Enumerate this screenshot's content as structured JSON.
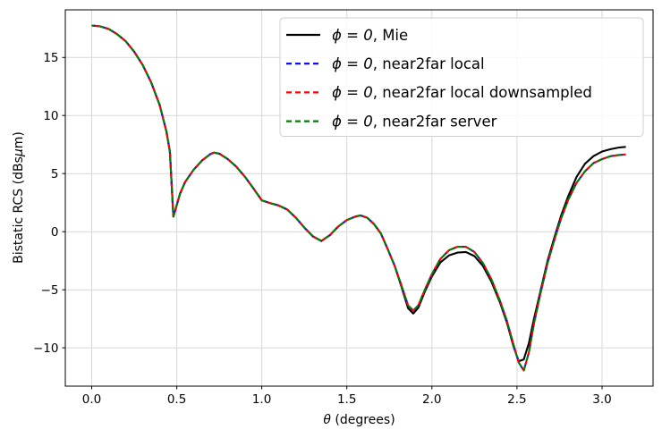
{
  "figure": {
    "background": "#ffffff"
  },
  "chart_data": {
    "type": "line",
    "title": "",
    "xlabel": "θ (degrees)",
    "xlabel_math": "θ",
    "xlabel_rest": " (degrees)",
    "ylabel": "Bistatic RCS (dBsμm)",
    "ylabel_pre": "Bistatic RCS (dBs",
    "ylabel_mu": "μ",
    "ylabel_post": "m)",
    "xlim": [
      -0.155,
      3.3
    ],
    "ylim": [
      -13.3,
      19.1
    ],
    "xticks": [
      0.0,
      0.5,
      1.0,
      1.5,
      2.0,
      2.5,
      3.0
    ],
    "xtick_labels": [
      "0.0",
      "0.5",
      "1.0",
      "1.5",
      "2.0",
      "2.5",
      "3.0"
    ],
    "yticks": [
      15,
      10,
      5,
      0,
      -5,
      -10
    ],
    "ytick_labels": [
      "15",
      "10",
      "5",
      "0",
      "−5",
      "−10"
    ],
    "grid": true,
    "grid_color": "#d7d7d7",
    "axis_color": "#000000",
    "legend": {
      "position": "upper right",
      "border_color": "#cfcfcf",
      "background": "#ffffff"
    },
    "x": [
      0.0,
      0.05,
      0.1,
      0.15,
      0.2,
      0.25,
      0.3,
      0.35,
      0.4,
      0.44,
      0.46,
      0.48,
      0.5,
      0.52,
      0.55,
      0.6,
      0.65,
      0.7,
      0.72,
      0.75,
      0.8,
      0.85,
      0.9,
      0.95,
      1.0,
      1.05,
      1.1,
      1.15,
      1.2,
      1.25,
      1.3,
      1.35,
      1.4,
      1.45,
      1.5,
      1.55,
      1.58,
      1.62,
      1.66,
      1.7,
      1.74,
      1.78,
      1.82,
      1.86,
      1.89,
      1.92,
      1.96,
      2.0,
      2.05,
      2.1,
      2.15,
      2.2,
      2.25,
      2.3,
      2.35,
      2.4,
      2.44,
      2.48,
      2.51,
      2.54,
      2.57,
      2.6,
      2.64,
      2.68,
      2.72,
      2.76,
      2.8,
      2.85,
      2.9,
      2.95,
      3.0,
      3.05,
      3.1,
      3.14
    ],
    "series": [
      {
        "id": "mie",
        "label": "ϕ = 0, Mie",
        "label_math": "ϕ = 0",
        "label_rest": ", Mie",
        "color": "#000000",
        "style": "solid",
        "values": [
          17.75,
          17.68,
          17.45,
          17.0,
          16.4,
          15.5,
          14.35,
          12.85,
          10.9,
          8.6,
          6.9,
          1.3,
          2.3,
          3.3,
          4.3,
          5.35,
          6.15,
          6.7,
          6.8,
          6.72,
          6.25,
          5.6,
          4.75,
          3.75,
          2.7,
          2.45,
          2.25,
          1.9,
          1.2,
          0.35,
          -0.4,
          -0.8,
          -0.3,
          0.45,
          1.0,
          1.3,
          1.4,
          1.2,
          0.65,
          -0.15,
          -1.5,
          -2.9,
          -4.7,
          -6.6,
          -7.05,
          -6.55,
          -5.1,
          -3.85,
          -2.65,
          -2.05,
          -1.8,
          -1.75,
          -2.1,
          -2.95,
          -4.3,
          -6.1,
          -7.8,
          -9.9,
          -11.15,
          -11.0,
          -9.6,
          -7.5,
          -5.0,
          -2.5,
          -0.5,
          1.4,
          3.0,
          4.7,
          5.85,
          6.5,
          6.9,
          7.1,
          7.25,
          7.3
        ]
      },
      {
        "id": "near2far-local",
        "label": "ϕ = 0, near2far local",
        "label_math": "ϕ = 0",
        "label_rest": ", near2far local",
        "color": "#0000ff",
        "style": "dashed",
        "values": [
          17.75,
          17.68,
          17.45,
          17.0,
          16.4,
          15.5,
          14.35,
          12.85,
          10.9,
          8.6,
          6.9,
          1.3,
          2.3,
          3.3,
          4.3,
          5.35,
          6.15,
          6.7,
          6.8,
          6.72,
          6.25,
          5.6,
          4.75,
          3.75,
          2.7,
          2.45,
          2.25,
          1.9,
          1.2,
          0.35,
          -0.4,
          -0.8,
          -0.3,
          0.45,
          1.0,
          1.3,
          1.4,
          1.2,
          0.65,
          -0.15,
          -1.5,
          -2.9,
          -4.6,
          -6.35,
          -6.8,
          -6.35,
          -4.95,
          -3.65,
          -2.35,
          -1.6,
          -1.3,
          -1.3,
          -1.75,
          -2.7,
          -4.1,
          -5.95,
          -7.65,
          -9.75,
          -11.25,
          -11.95,
          -10.4,
          -7.9,
          -5.2,
          -2.7,
          -0.7,
          1.15,
          2.7,
          4.2,
          5.2,
          5.9,
          6.25,
          6.5,
          6.6,
          6.65
        ]
      },
      {
        "id": "near2far-local-downsampled",
        "label": "ϕ = 0, near2far local downsampled",
        "label_math": "ϕ = 0",
        "label_rest": ", near2far local downsampled",
        "color": "#ff0000",
        "style": "dashed",
        "values": [
          17.75,
          17.68,
          17.45,
          17.0,
          16.4,
          15.5,
          14.35,
          12.85,
          10.9,
          8.6,
          6.9,
          1.3,
          2.3,
          3.3,
          4.3,
          5.35,
          6.15,
          6.7,
          6.8,
          6.72,
          6.25,
          5.6,
          4.75,
          3.75,
          2.7,
          2.45,
          2.25,
          1.9,
          1.2,
          0.35,
          -0.4,
          -0.8,
          -0.3,
          0.45,
          1.0,
          1.3,
          1.4,
          1.2,
          0.65,
          -0.15,
          -1.5,
          -2.9,
          -4.6,
          -6.35,
          -6.8,
          -6.35,
          -4.95,
          -3.65,
          -2.35,
          -1.6,
          -1.3,
          -1.3,
          -1.75,
          -2.7,
          -4.1,
          -5.95,
          -7.65,
          -9.75,
          -11.25,
          -11.95,
          -10.4,
          -7.9,
          -5.2,
          -2.7,
          -0.7,
          1.15,
          2.7,
          4.2,
          5.2,
          5.9,
          6.25,
          6.5,
          6.6,
          6.65
        ]
      },
      {
        "id": "near2far-server",
        "label": "ϕ = 0, near2far server",
        "label_math": "ϕ = 0",
        "label_rest": ", near2far server",
        "color": "#008000",
        "style": "dashed",
        "values": [
          17.75,
          17.68,
          17.45,
          17.0,
          16.4,
          15.5,
          14.35,
          12.85,
          10.9,
          8.6,
          6.9,
          1.3,
          2.3,
          3.3,
          4.3,
          5.35,
          6.15,
          6.7,
          6.8,
          6.72,
          6.25,
          5.6,
          4.75,
          3.75,
          2.7,
          2.45,
          2.25,
          1.9,
          1.2,
          0.35,
          -0.4,
          -0.8,
          -0.3,
          0.45,
          1.0,
          1.3,
          1.4,
          1.2,
          0.65,
          -0.15,
          -1.5,
          -2.9,
          -4.6,
          -6.35,
          -6.8,
          -6.35,
          -4.95,
          -3.65,
          -2.35,
          -1.6,
          -1.3,
          -1.3,
          -1.75,
          -2.7,
          -4.1,
          -5.95,
          -7.65,
          -9.75,
          -11.25,
          -11.95,
          -10.4,
          -7.9,
          -5.2,
          -2.7,
          -0.7,
          1.15,
          2.7,
          4.2,
          5.2,
          5.9,
          6.25,
          6.5,
          6.6,
          6.65
        ]
      }
    ]
  }
}
